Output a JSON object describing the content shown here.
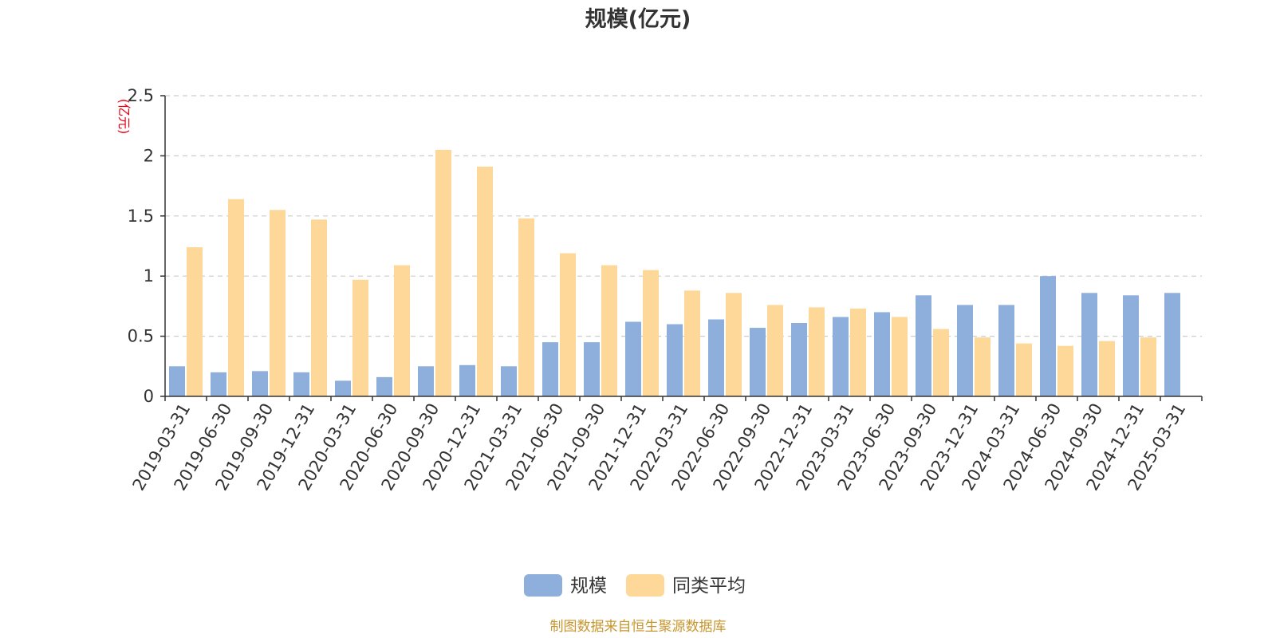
{
  "title": "规模(亿元)",
  "unit_label": "(亿元)",
  "source": "制图数据来自恒生聚源数据库",
  "colors": {
    "scale": "#8eaedc",
    "peer_avg": "#fdd898",
    "grid": "#cccccc",
    "axis": "#333333",
    "unit": "#e60012",
    "source": "#c8962e"
  },
  "chart_data": {
    "type": "bar",
    "title": "规模(亿元)",
    "ylabel": "(亿元)",
    "ylim": [
      0,
      2.5
    ],
    "yticks": [
      0,
      0.5,
      1,
      1.5,
      2,
      2.5
    ],
    "ytick_labels": [
      "0",
      "0.5",
      "1",
      "1.5",
      "2",
      "2.5"
    ],
    "grid": true,
    "legend_position": "bottom-center",
    "categories": [
      "2019-03-31",
      "2019-06-30",
      "2019-09-30",
      "2019-12-31",
      "2020-03-31",
      "2020-06-30",
      "2020-09-30",
      "2020-12-31",
      "2021-03-31",
      "2021-06-30",
      "2021-09-30",
      "2021-12-31",
      "2022-03-31",
      "2022-06-30",
      "2022-09-30",
      "2022-12-31",
      "2023-03-31",
      "2023-06-30",
      "2023-09-30",
      "2023-12-31",
      "2024-03-31",
      "2024-06-30",
      "2024-09-30",
      "2024-12-31",
      "2025-03-31"
    ],
    "series": [
      {
        "name": "规模",
        "color": "#8eaedc",
        "values": [
          0.25,
          0.2,
          0.21,
          0.2,
          0.13,
          0.16,
          0.25,
          0.26,
          0.25,
          0.45,
          0.45,
          0.62,
          0.6,
          0.64,
          0.57,
          0.61,
          0.66,
          0.7,
          0.84,
          0.76,
          0.76,
          1.0,
          0.86,
          0.84,
          0.86
        ]
      },
      {
        "name": "同类平均",
        "color": "#fdd898",
        "values": [
          1.24,
          1.64,
          1.55,
          1.47,
          0.97,
          1.09,
          2.05,
          1.91,
          1.48,
          1.19,
          1.09,
          1.05,
          0.88,
          0.86,
          0.76,
          0.74,
          0.73,
          0.66,
          0.56,
          0.49,
          0.44,
          0.42,
          0.46,
          0.49,
          null
        ]
      }
    ]
  }
}
